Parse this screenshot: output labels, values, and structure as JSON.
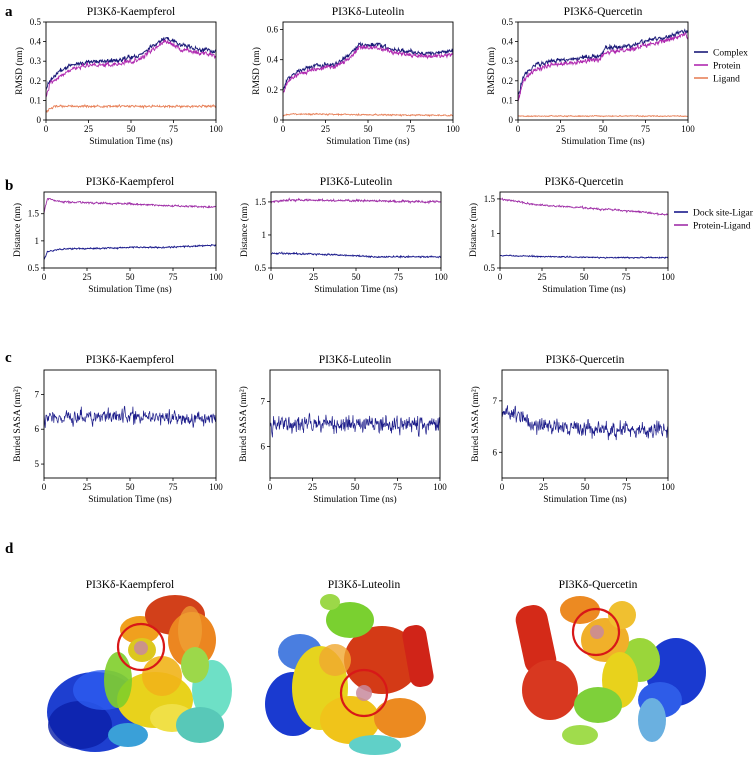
{
  "figure": {
    "panels": [
      "a",
      "b",
      "c",
      "d"
    ]
  },
  "colors": {
    "complex": "#1a1a78",
    "protein": "#b02ab0",
    "ligand": "#e8825a",
    "dock_site_ligand": "#1a1a8c",
    "protein_ligand": "#a030a8",
    "buried_sasa": "#1c1c8a",
    "highlight_circle": "#d81818"
  },
  "chart_data": [
    {
      "id": "a1",
      "panel": "a",
      "type": "line",
      "title": "PI3Kδ-Kaempferol",
      "xlabel": "Stimulation Time  (ns)",
      "ylabel": "RMSD (nm)",
      "xlim": [
        0,
        100
      ],
      "ylim": [
        0,
        0.5
      ],
      "xticks": [
        0,
        25,
        50,
        75,
        100
      ],
      "yticks": [
        0,
        0.1,
        0.2,
        0.3,
        0.4,
        0.5
      ],
      "series": [
        {
          "name": "Complex",
          "color": "#1a1a78",
          "noise": 0.025,
          "points": [
            [
              0,
              0.15
            ],
            [
              2,
              0.2
            ],
            [
              8,
              0.25
            ],
            [
              15,
              0.28
            ],
            [
              25,
              0.3
            ],
            [
              35,
              0.3
            ],
            [
              45,
              0.31
            ],
            [
              50,
              0.32
            ],
            [
              55,
              0.33
            ],
            [
              60,
              0.36
            ],
            [
              65,
              0.39
            ],
            [
              70,
              0.42
            ],
            [
              75,
              0.4
            ],
            [
              80,
              0.38
            ],
            [
              90,
              0.36
            ],
            [
              100,
              0.35
            ]
          ]
        },
        {
          "name": "Protein",
          "color": "#b02ab0",
          "noise": 0.025,
          "points": [
            [
              0,
              0.12
            ],
            [
              2,
              0.18
            ],
            [
              8,
              0.22
            ],
            [
              15,
              0.26
            ],
            [
              25,
              0.28
            ],
            [
              35,
              0.28
            ],
            [
              45,
              0.29
            ],
            [
              50,
              0.3
            ],
            [
              55,
              0.31
            ],
            [
              60,
              0.34
            ],
            [
              65,
              0.37
            ],
            [
              70,
              0.4
            ],
            [
              75,
              0.38
            ],
            [
              80,
              0.36
            ],
            [
              90,
              0.34
            ],
            [
              100,
              0.33
            ]
          ]
        },
        {
          "name": "Ligand",
          "color": "#e8825a",
          "noise": 0.012,
          "points": [
            [
              0,
              0.04
            ],
            [
              5,
              0.07
            ],
            [
              100,
              0.07
            ]
          ]
        }
      ],
      "legend": []
    },
    {
      "id": "a2",
      "panel": "a",
      "type": "line",
      "title": "PI3Kδ-Luteolin",
      "xlabel": "Stimulation Time  (ns)",
      "ylabel": "RMSD (nm)",
      "xlim": [
        0,
        100
      ],
      "ylim": [
        0,
        0.65
      ],
      "xticks": [
        0,
        25,
        50,
        75,
        100
      ],
      "yticks": [
        0,
        0.2,
        0.4,
        0.6
      ],
      "series": [
        {
          "name": "Complex",
          "color": "#1a1a78",
          "noise": 0.03,
          "points": [
            [
              0,
              0.2
            ],
            [
              3,
              0.28
            ],
            [
              10,
              0.33
            ],
            [
              20,
              0.36
            ],
            [
              30,
              0.37
            ],
            [
              38,
              0.42
            ],
            [
              45,
              0.5
            ],
            [
              55,
              0.5
            ],
            [
              65,
              0.47
            ],
            [
              75,
              0.45
            ],
            [
              85,
              0.44
            ],
            [
              95,
              0.45
            ],
            [
              100,
              0.46
            ]
          ]
        },
        {
          "name": "Protein",
          "color": "#b02ab0",
          "noise": 0.03,
          "points": [
            [
              0,
              0.18
            ],
            [
              3,
              0.26
            ],
            [
              10,
              0.31
            ],
            [
              20,
              0.34
            ],
            [
              30,
              0.35
            ],
            [
              38,
              0.4
            ],
            [
              45,
              0.48
            ],
            [
              55,
              0.48
            ],
            [
              65,
              0.45
            ],
            [
              75,
              0.43
            ],
            [
              85,
              0.42
            ],
            [
              95,
              0.43
            ],
            [
              100,
              0.44
            ]
          ]
        },
        {
          "name": "Ligand",
          "color": "#e8825a",
          "noise": 0.01,
          "points": [
            [
              0,
              0.03
            ],
            [
              5,
              0.04
            ],
            [
              100,
              0.03
            ]
          ]
        }
      ],
      "legend": []
    },
    {
      "id": "a3",
      "panel": "a",
      "type": "line",
      "title": "PI3Kδ-Quercetin",
      "xlabel": "Stimulation Time  (ns)",
      "ylabel": "RMSD (nm)",
      "xlim": [
        0,
        100
      ],
      "ylim": [
        0,
        0.5
      ],
      "xticks": [
        0,
        25,
        50,
        75,
        100
      ],
      "yticks": [
        0,
        0.1,
        0.2,
        0.3,
        0.4,
        0.5
      ],
      "series": [
        {
          "name": "Complex",
          "color": "#1a1a78",
          "noise": 0.025,
          "points": [
            [
              0,
              0.12
            ],
            [
              3,
              0.22
            ],
            [
              10,
              0.28
            ],
            [
              20,
              0.3
            ],
            [
              30,
              0.31
            ],
            [
              40,
              0.32
            ],
            [
              48,
              0.33
            ],
            [
              52,
              0.37
            ],
            [
              60,
              0.37
            ],
            [
              70,
              0.39
            ],
            [
              80,
              0.41
            ],
            [
              90,
              0.43
            ],
            [
              98,
              0.46
            ],
            [
              100,
              0.44
            ]
          ]
        },
        {
          "name": "Protein",
          "color": "#b02ab0",
          "noise": 0.025,
          "points": [
            [
              0,
              0.1
            ],
            [
              3,
              0.2
            ],
            [
              10,
              0.26
            ],
            [
              20,
              0.28
            ],
            [
              30,
              0.29
            ],
            [
              40,
              0.3
            ],
            [
              48,
              0.31
            ],
            [
              52,
              0.35
            ],
            [
              60,
              0.35
            ],
            [
              70,
              0.37
            ],
            [
              80,
              0.39
            ],
            [
              90,
              0.41
            ],
            [
              98,
              0.44
            ],
            [
              100,
              0.42
            ]
          ]
        },
        {
          "name": "Ligand",
          "color": "#e8825a",
          "noise": 0.006,
          "points": [
            [
              0,
              0.02
            ],
            [
              100,
              0.02
            ]
          ]
        }
      ],
      "legend": [
        "Complex",
        "Protein",
        "Ligand"
      ]
    },
    {
      "id": "b1",
      "panel": "b",
      "type": "line",
      "title": "PI3Kδ-Kaempferol",
      "xlabel": "Stimulation Time  (ns)",
      "ylabel": "Distance (nm)",
      "xlim": [
        0,
        100
      ],
      "ylim": [
        0.5,
        1.9
      ],
      "xticks": [
        0,
        25,
        50,
        75,
        100
      ],
      "yticks": [
        0.5,
        1.0,
        1.5
      ],
      "series": [
        {
          "name": "Protein-Ligand",
          "color": "#a030a8",
          "noise": 0.035,
          "points": [
            [
              0,
              1.5
            ],
            [
              2,
              1.78
            ],
            [
              10,
              1.72
            ],
            [
              30,
              1.7
            ],
            [
              50,
              1.68
            ],
            [
              70,
              1.65
            ],
            [
              100,
              1.62
            ]
          ]
        },
        {
          "name": "Dock site-Ligand",
          "color": "#1a1a8c",
          "noise": 0.03,
          "points": [
            [
              0,
              0.65
            ],
            [
              2,
              0.8
            ],
            [
              10,
              0.85
            ],
            [
              30,
              0.86
            ],
            [
              50,
              0.88
            ],
            [
              70,
              0.88
            ],
            [
              100,
              0.92
            ]
          ]
        }
      ],
      "legend": []
    },
    {
      "id": "b2",
      "panel": "b",
      "type": "line",
      "title": "PI3Kδ-Luteolin",
      "xlabel": "Stimulation Time  (ns)",
      "ylabel": "Distance (nm)",
      "xlim": [
        0,
        100
      ],
      "ylim": [
        0.5,
        1.65
      ],
      "xticks": [
        0,
        25,
        50,
        75,
        100
      ],
      "yticks": [
        0.5,
        1.0,
        1.5
      ],
      "series": [
        {
          "name": "Protein-Ligand",
          "color": "#a030a8",
          "noise": 0.035,
          "points": [
            [
              0,
              1.5
            ],
            [
              10,
              1.53
            ],
            [
              50,
              1.52
            ],
            [
              100,
              1.5
            ]
          ]
        },
        {
          "name": "Dock site-Ligand",
          "color": "#1a1a8c",
          "noise": 0.025,
          "points": [
            [
              0,
              0.72
            ],
            [
              10,
              0.72
            ],
            [
              40,
              0.7
            ],
            [
              60,
              0.67
            ],
            [
              100,
              0.67
            ]
          ]
        }
      ],
      "legend": []
    },
    {
      "id": "b3",
      "panel": "b",
      "type": "line",
      "title": "PI3Kδ-Quercetin",
      "xlabel": "Stimulation Time  (ns)",
      "ylabel": "Distance (nm)",
      "xlim": [
        0,
        100
      ],
      "ylim": [
        0.5,
        1.6
      ],
      "xticks": [
        0,
        25,
        50,
        75,
        100
      ],
      "yticks": [
        0.5,
        1.0,
        1.5
      ],
      "series": [
        {
          "name": "Protein-Ligand",
          "color": "#a030a8",
          "noise": 0.03,
          "points": [
            [
              0,
              1.5
            ],
            [
              5,
              1.48
            ],
            [
              20,
              1.42
            ],
            [
              50,
              1.37
            ],
            [
              80,
              1.32
            ],
            [
              100,
              1.27
            ]
          ]
        },
        {
          "name": "Dock site-Ligand",
          "color": "#1a1a8c",
          "noise": 0.02,
          "points": [
            [
              0,
              0.68
            ],
            [
              20,
              0.67
            ],
            [
              60,
              0.65
            ],
            [
              100,
              0.65
            ]
          ]
        }
      ],
      "legend": [
        "Dock site-Ligand",
        "Protein-Ligand"
      ]
    },
    {
      "id": "c1",
      "panel": "c",
      "type": "line",
      "title": "PI3Kδ-Kaempferol",
      "xlabel": "Stimulation Time  (ns)",
      "ylabel": "Buried SASA (nm²)",
      "xlim": [
        0,
        100
      ],
      "ylim": [
        4.6,
        7.7
      ],
      "xticks": [
        0,
        25,
        50,
        75,
        100
      ],
      "yticks": [
        5,
        6,
        7
      ],
      "series": [
        {
          "name": "Buried SASA",
          "color": "#1c1c8a",
          "noise": 0.45,
          "points": [
            [
              0,
              6.3
            ],
            [
              50,
              6.4
            ],
            [
              100,
              6.3
            ]
          ]
        }
      ],
      "legend": []
    },
    {
      "id": "c2",
      "panel": "c",
      "type": "line",
      "title": "PI3Kδ-Luteolin",
      "xlabel": "Stimulation Time  (ns)",
      "ylabel": "Buried SASA (nm²)",
      "xlim": [
        0,
        100
      ],
      "ylim": [
        5.3,
        7.7
      ],
      "xticks": [
        0,
        25,
        50,
        75,
        100
      ],
      "yticks": [
        6,
        7
      ],
      "series": [
        {
          "name": "Buried SASA",
          "color": "#1c1c8a",
          "noise": 0.42,
          "points": [
            [
              0,
              6.5
            ],
            [
              100,
              6.5
            ]
          ]
        }
      ],
      "legend": []
    },
    {
      "id": "c3",
      "panel": "c",
      "type": "line",
      "title": "PI3Kδ-Quercetin",
      "xlabel": "Stimulation Time  (ns)",
      "ylabel": "Buried SASA (nm²)",
      "xlim": [
        0,
        100
      ],
      "ylim": [
        5.5,
        7.6
      ],
      "xticks": [
        0,
        25,
        50,
        75,
        100
      ],
      "yticks": [
        6,
        7
      ],
      "series": [
        {
          "name": "Buried SASA",
          "color": "#1c1c8a",
          "noise": 0.32,
          "points": [
            [
              0,
              6.8
            ],
            [
              10,
              6.7
            ],
            [
              20,
              6.5
            ],
            [
              50,
              6.45
            ],
            [
              100,
              6.45
            ]
          ]
        }
      ],
      "legend": []
    }
  ],
  "structures": [
    {
      "title": "PI3Kδ-Kaempferol"
    },
    {
      "title": "PI3Kδ-Luteolin"
    },
    {
      "title": "PI3Kδ-Quercetin"
    }
  ]
}
